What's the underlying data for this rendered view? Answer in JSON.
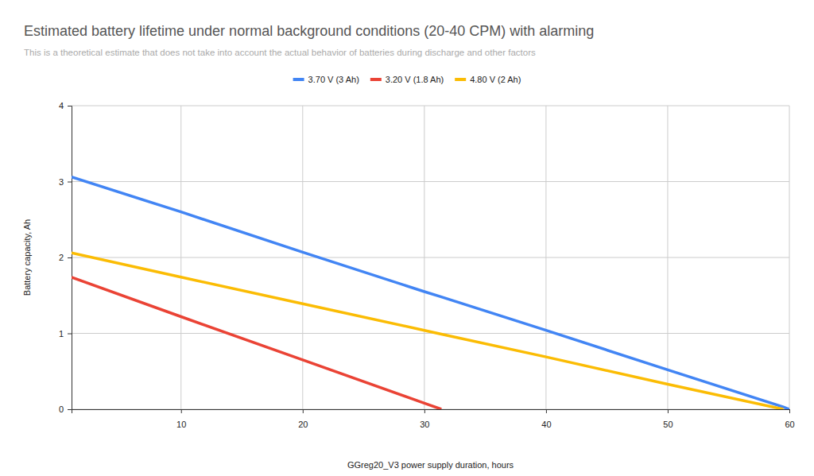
{
  "chart_data": {
    "type": "line",
    "title": "Estimated battery lifetime under normal background conditions (20-40 CPM) with alarming",
    "subtitle": "This is a theoretical estimate that does not take into account the actual behavior of batteries during discharge and other factors",
    "x_label": "GGreg20_V3 power supply duration, hours",
    "y_label": "Battery capacity, Ah",
    "x": [
      1,
      10,
      20,
      30,
      31.4,
      40,
      50,
      59.5,
      60
    ],
    "series": [
      {
        "name": "3.70 V (3 Ah)",
        "color": "#4285f4",
        "values": [
          3.06,
          2.6,
          2.07,
          1.55,
          1.48,
          1.04,
          0.52,
          0.03,
          0
        ]
      },
      {
        "name": "3.20 V (1.8 Ah)",
        "color": "#ea4335",
        "values": [
          1.74,
          1.22,
          0.65,
          0.08,
          0,
          null,
          null,
          null,
          null
        ]
      },
      {
        "name": "4.80 V (2 Ah)",
        "color": "#fbbc04",
        "values": [
          2.06,
          1.74,
          1.39,
          1.04,
          0.99,
          0.69,
          0.33,
          0,
          null
        ]
      }
    ],
    "xlim": [
      1,
      60
    ],
    "xticks": [
      10,
      20,
      30,
      40,
      50,
      60
    ],
    "ylim": [
      0,
      4
    ],
    "yticks": [
      0,
      1,
      2,
      3,
      4
    ],
    "grid": true,
    "legend": "top"
  }
}
